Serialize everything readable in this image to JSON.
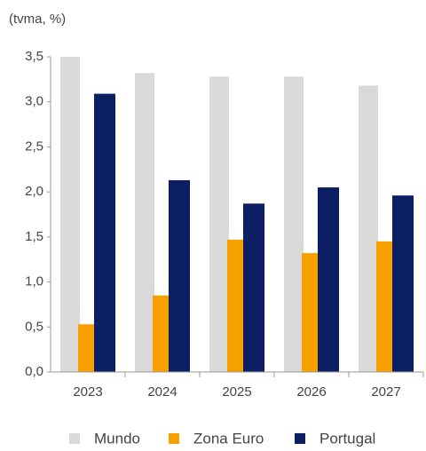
{
  "chart_data": {
    "type": "bar",
    "title": "(tvma, %)",
    "categories": [
      "2023",
      "2024",
      "2025",
      "2026",
      "2027"
    ],
    "series": [
      {
        "name": "Mundo",
        "color": "#d9d9d9",
        "values": [
          3.5,
          3.32,
          3.28,
          3.28,
          3.18
        ]
      },
      {
        "name": "Zona Euro",
        "color": "#f7a000",
        "values": [
          0.53,
          0.85,
          1.47,
          1.32,
          1.45
        ]
      },
      {
        "name": "Portugal",
        "color": "#0c1f63",
        "values": [
          3.09,
          2.13,
          1.87,
          2.05,
          1.96
        ]
      }
    ],
    "ylim": [
      0,
      3.5
    ],
    "yticks": [
      {
        "value": 0,
        "label": "0,0"
      },
      {
        "value": 0.5,
        "label": "0,5"
      },
      {
        "value": 1,
        "label": "1,0"
      },
      {
        "value": 1.5,
        "label": "1,5"
      },
      {
        "value": 2,
        "label": "2,0"
      },
      {
        "value": 2.5,
        "label": "2,5"
      },
      {
        "value": 3,
        "label": "3,0"
      },
      {
        "value": 3.5,
        "label": "3,5"
      }
    ],
    "grid": false,
    "legend": "bottom"
  }
}
